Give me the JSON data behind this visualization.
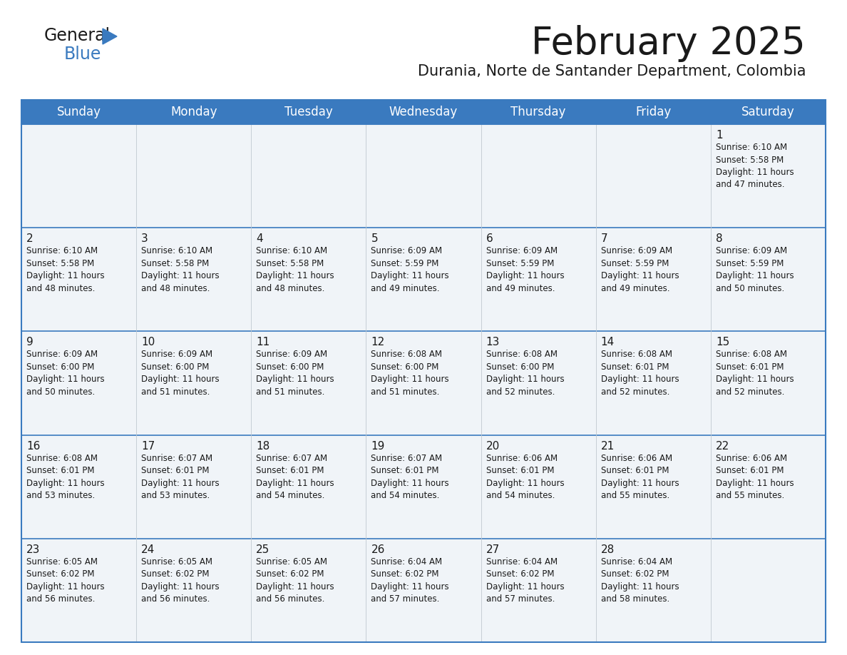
{
  "title": "February 2025",
  "subtitle": "Durania, Norte de Santander Department, Colombia",
  "header_bg": "#3a7abf",
  "header_text_color": "#ffffff",
  "cell_bg": "#f0f4f8",
  "border_color": "#3a7abf",
  "row_sep_color": "#3a7abf",
  "col_sep_color": "#c0c8d0",
  "text_color": "#1a1a1a",
  "day_names": [
    "Sunday",
    "Monday",
    "Tuesday",
    "Wednesday",
    "Thursday",
    "Friday",
    "Saturday"
  ],
  "calendar": [
    [
      {
        "day": "",
        "info": ""
      },
      {
        "day": "",
        "info": ""
      },
      {
        "day": "",
        "info": ""
      },
      {
        "day": "",
        "info": ""
      },
      {
        "day": "",
        "info": ""
      },
      {
        "day": "",
        "info": ""
      },
      {
        "day": "1",
        "info": "Sunrise: 6:10 AM\nSunset: 5:58 PM\nDaylight: 11 hours\nand 47 minutes."
      }
    ],
    [
      {
        "day": "2",
        "info": "Sunrise: 6:10 AM\nSunset: 5:58 PM\nDaylight: 11 hours\nand 48 minutes."
      },
      {
        "day": "3",
        "info": "Sunrise: 6:10 AM\nSunset: 5:58 PM\nDaylight: 11 hours\nand 48 minutes."
      },
      {
        "day": "4",
        "info": "Sunrise: 6:10 AM\nSunset: 5:58 PM\nDaylight: 11 hours\nand 48 minutes."
      },
      {
        "day": "5",
        "info": "Sunrise: 6:09 AM\nSunset: 5:59 PM\nDaylight: 11 hours\nand 49 minutes."
      },
      {
        "day": "6",
        "info": "Sunrise: 6:09 AM\nSunset: 5:59 PM\nDaylight: 11 hours\nand 49 minutes."
      },
      {
        "day": "7",
        "info": "Sunrise: 6:09 AM\nSunset: 5:59 PM\nDaylight: 11 hours\nand 49 minutes."
      },
      {
        "day": "8",
        "info": "Sunrise: 6:09 AM\nSunset: 5:59 PM\nDaylight: 11 hours\nand 50 minutes."
      }
    ],
    [
      {
        "day": "9",
        "info": "Sunrise: 6:09 AM\nSunset: 6:00 PM\nDaylight: 11 hours\nand 50 minutes."
      },
      {
        "day": "10",
        "info": "Sunrise: 6:09 AM\nSunset: 6:00 PM\nDaylight: 11 hours\nand 51 minutes."
      },
      {
        "day": "11",
        "info": "Sunrise: 6:09 AM\nSunset: 6:00 PM\nDaylight: 11 hours\nand 51 minutes."
      },
      {
        "day": "12",
        "info": "Sunrise: 6:08 AM\nSunset: 6:00 PM\nDaylight: 11 hours\nand 51 minutes."
      },
      {
        "day": "13",
        "info": "Sunrise: 6:08 AM\nSunset: 6:00 PM\nDaylight: 11 hours\nand 52 minutes."
      },
      {
        "day": "14",
        "info": "Sunrise: 6:08 AM\nSunset: 6:01 PM\nDaylight: 11 hours\nand 52 minutes."
      },
      {
        "day": "15",
        "info": "Sunrise: 6:08 AM\nSunset: 6:01 PM\nDaylight: 11 hours\nand 52 minutes."
      }
    ],
    [
      {
        "day": "16",
        "info": "Sunrise: 6:08 AM\nSunset: 6:01 PM\nDaylight: 11 hours\nand 53 minutes."
      },
      {
        "day": "17",
        "info": "Sunrise: 6:07 AM\nSunset: 6:01 PM\nDaylight: 11 hours\nand 53 minutes."
      },
      {
        "day": "18",
        "info": "Sunrise: 6:07 AM\nSunset: 6:01 PM\nDaylight: 11 hours\nand 54 minutes."
      },
      {
        "day": "19",
        "info": "Sunrise: 6:07 AM\nSunset: 6:01 PM\nDaylight: 11 hours\nand 54 minutes."
      },
      {
        "day": "20",
        "info": "Sunrise: 6:06 AM\nSunset: 6:01 PM\nDaylight: 11 hours\nand 54 minutes."
      },
      {
        "day": "21",
        "info": "Sunrise: 6:06 AM\nSunset: 6:01 PM\nDaylight: 11 hours\nand 55 minutes."
      },
      {
        "day": "22",
        "info": "Sunrise: 6:06 AM\nSunset: 6:01 PM\nDaylight: 11 hours\nand 55 minutes."
      }
    ],
    [
      {
        "day": "23",
        "info": "Sunrise: 6:05 AM\nSunset: 6:02 PM\nDaylight: 11 hours\nand 56 minutes."
      },
      {
        "day": "24",
        "info": "Sunrise: 6:05 AM\nSunset: 6:02 PM\nDaylight: 11 hours\nand 56 minutes."
      },
      {
        "day": "25",
        "info": "Sunrise: 6:05 AM\nSunset: 6:02 PM\nDaylight: 11 hours\nand 56 minutes."
      },
      {
        "day": "26",
        "info": "Sunrise: 6:04 AM\nSunset: 6:02 PM\nDaylight: 11 hours\nand 57 minutes."
      },
      {
        "day": "27",
        "info": "Sunrise: 6:04 AM\nSunset: 6:02 PM\nDaylight: 11 hours\nand 57 minutes."
      },
      {
        "day": "28",
        "info": "Sunrise: 6:04 AM\nSunset: 6:02 PM\nDaylight: 11 hours\nand 58 minutes."
      },
      {
        "day": "",
        "info": ""
      }
    ]
  ],
  "logo_general_color": "#1a1a1a",
  "logo_blue_color": "#3a7abf",
  "logo_triangle_color": "#3a7abf",
  "title_fontsize": 38,
  "subtitle_fontsize": 15,
  "header_fontsize": 12,
  "day_num_fontsize": 11,
  "info_fontsize": 8.5
}
